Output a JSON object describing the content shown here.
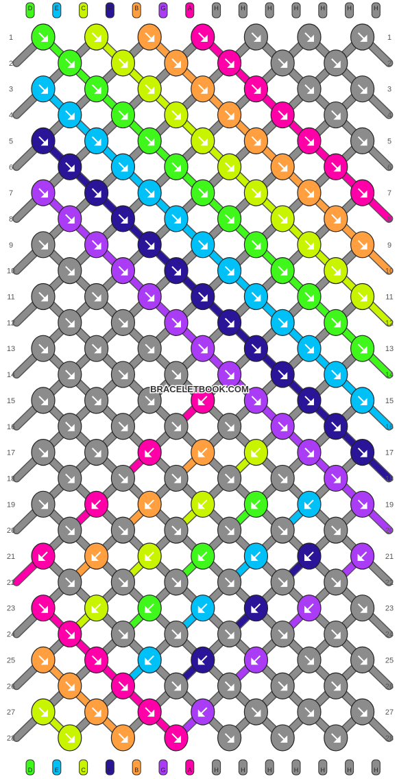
{
  "watermark": "BRACELETBOOK.COM",
  "strands": {
    "top": [
      "D",
      "E",
      "C",
      "F",
      "B",
      "G",
      "A",
      "H",
      "H",
      "H",
      "H",
      "H",
      "H",
      "H"
    ],
    "bottom": [
      "D",
      "E",
      "C",
      "F",
      "B",
      "G",
      "A",
      "H",
      "H",
      "H",
      "H",
      "H",
      "H",
      "H"
    ]
  },
  "colors": {
    "A": "#ff00a8",
    "B": "#ff9f40",
    "C": "#c8f400",
    "D": "#3ff71a",
    "E": "#00c0f8",
    "F": "#2a1599",
    "G": "#aa3cf5",
    "H": "#8c8c8c"
  },
  "row_count": 28,
  "rows": [
    {
      "number": 1,
      "knots": [
        {
          "color": "D",
          "dir": "f"
        },
        {
          "color": "C",
          "dir": "f"
        },
        {
          "color": "B",
          "dir": "f"
        },
        {
          "color": "A",
          "dir": "f"
        },
        {
          "color": "H",
          "dir": "f"
        },
        {
          "color": "H",
          "dir": "f"
        },
        {
          "color": "H",
          "dir": "f"
        }
      ]
    },
    {
      "number": 2,
      "knots": [
        {
          "color": "D",
          "dir": "f"
        },
        {
          "color": "C",
          "dir": "f"
        },
        {
          "color": "B",
          "dir": "f"
        },
        {
          "color": "A",
          "dir": "f"
        },
        {
          "color": "H",
          "dir": "f"
        },
        {
          "color": "H",
          "dir": "f"
        }
      ]
    },
    {
      "number": 3,
      "knots": [
        {
          "color": "E",
          "dir": "f"
        },
        {
          "color": "D",
          "dir": "f"
        },
        {
          "color": "C",
          "dir": "f"
        },
        {
          "color": "B",
          "dir": "f"
        },
        {
          "color": "A",
          "dir": "f"
        },
        {
          "color": "H",
          "dir": "f"
        },
        {
          "color": "H",
          "dir": "f"
        }
      ]
    },
    {
      "number": 4,
      "knots": [
        {
          "color": "E",
          "dir": "f"
        },
        {
          "color": "D",
          "dir": "f"
        },
        {
          "color": "C",
          "dir": "f"
        },
        {
          "color": "B",
          "dir": "f"
        },
        {
          "color": "A",
          "dir": "f"
        },
        {
          "color": "H",
          "dir": "f"
        }
      ]
    },
    {
      "number": 5,
      "knots": [
        {
          "color": "F",
          "dir": "f"
        },
        {
          "color": "E",
          "dir": "f"
        },
        {
          "color": "D",
          "dir": "f"
        },
        {
          "color": "C",
          "dir": "f"
        },
        {
          "color": "B",
          "dir": "f"
        },
        {
          "color": "A",
          "dir": "f"
        },
        {
          "color": "H",
          "dir": "f"
        }
      ]
    },
    {
      "number": 6,
      "knots": [
        {
          "color": "F",
          "dir": "f"
        },
        {
          "color": "E",
          "dir": "f"
        },
        {
          "color": "D",
          "dir": "f"
        },
        {
          "color": "C",
          "dir": "f"
        },
        {
          "color": "B",
          "dir": "f"
        },
        {
          "color": "A",
          "dir": "f"
        }
      ]
    },
    {
      "number": 7,
      "knots": [
        {
          "color": "G",
          "dir": "f"
        },
        {
          "color": "F",
          "dir": "f"
        },
        {
          "color": "E",
          "dir": "f"
        },
        {
          "color": "D",
          "dir": "f"
        },
        {
          "color": "C",
          "dir": "f"
        },
        {
          "color": "B",
          "dir": "f"
        },
        {
          "color": "A",
          "dir": "f"
        }
      ]
    },
    {
      "number": 8,
      "knots": [
        {
          "color": "G",
          "dir": "f"
        },
        {
          "color": "F",
          "dir": "f"
        },
        {
          "color": "E",
          "dir": "f"
        },
        {
          "color": "D",
          "dir": "f"
        },
        {
          "color": "C",
          "dir": "f"
        },
        {
          "color": "B",
          "dir": "f"
        }
      ]
    },
    {
      "number": 9,
      "knots": [
        {
          "color": "H",
          "dir": "f"
        },
        {
          "color": "G",
          "dir": "f"
        },
        {
          "color": "F",
          "dir": "f"
        },
        {
          "color": "E",
          "dir": "f"
        },
        {
          "color": "D",
          "dir": "f"
        },
        {
          "color": "C",
          "dir": "f"
        },
        {
          "color": "B",
          "dir": "f"
        }
      ]
    },
    {
      "number": 10,
      "knots": [
        {
          "color": "H",
          "dir": "f"
        },
        {
          "color": "G",
          "dir": "f"
        },
        {
          "color": "F",
          "dir": "f"
        },
        {
          "color": "E",
          "dir": "f"
        },
        {
          "color": "D",
          "dir": "f"
        },
        {
          "color": "C",
          "dir": "f"
        }
      ]
    },
    {
      "number": 11,
      "knots": [
        {
          "color": "H",
          "dir": "f"
        },
        {
          "color": "H",
          "dir": "f"
        },
        {
          "color": "G",
          "dir": "f"
        },
        {
          "color": "F",
          "dir": "f"
        },
        {
          "color": "E",
          "dir": "f"
        },
        {
          "color": "D",
          "dir": "f"
        },
        {
          "color": "C",
          "dir": "f"
        }
      ]
    },
    {
      "number": 12,
      "knots": [
        {
          "color": "H",
          "dir": "f"
        },
        {
          "color": "H",
          "dir": "f"
        },
        {
          "color": "G",
          "dir": "f"
        },
        {
          "color": "F",
          "dir": "f"
        },
        {
          "color": "E",
          "dir": "f"
        },
        {
          "color": "D",
          "dir": "f"
        }
      ]
    },
    {
      "number": 13,
      "knots": [
        {
          "color": "H",
          "dir": "f"
        },
        {
          "color": "H",
          "dir": "f"
        },
        {
          "color": "H",
          "dir": "f"
        },
        {
          "color": "G",
          "dir": "f"
        },
        {
          "color": "F",
          "dir": "f"
        },
        {
          "color": "E",
          "dir": "f"
        },
        {
          "color": "D",
          "dir": "f"
        }
      ]
    },
    {
      "number": 14,
      "knots": [
        {
          "color": "H",
          "dir": "f"
        },
        {
          "color": "H",
          "dir": "f"
        },
        {
          "color": "H",
          "dir": "f"
        },
        {
          "color": "G",
          "dir": "f"
        },
        {
          "color": "F",
          "dir": "f"
        },
        {
          "color": "E",
          "dir": "f"
        }
      ]
    },
    {
      "number": 15,
      "knots": [
        {
          "color": "H",
          "dir": "f"
        },
        {
          "color": "H",
          "dir": "f"
        },
        {
          "color": "H",
          "dir": "f"
        },
        {
          "color": "A",
          "dir": "b"
        },
        {
          "color": "G",
          "dir": "f"
        },
        {
          "color": "F",
          "dir": "f"
        },
        {
          "color": "E",
          "dir": "f"
        }
      ]
    },
    {
      "number": 16,
      "knots": [
        {
          "color": "H",
          "dir": "f"
        },
        {
          "color": "H",
          "dir": "f"
        },
        {
          "color": "H",
          "dir": "f"
        },
        {
          "color": "H",
          "dir": "f"
        },
        {
          "color": "G",
          "dir": "f"
        },
        {
          "color": "F",
          "dir": "f"
        }
      ]
    },
    {
      "number": 17,
      "knots": [
        {
          "color": "H",
          "dir": "f"
        },
        {
          "color": "H",
          "dir": "f"
        },
        {
          "color": "A",
          "dir": "b"
        },
        {
          "color": "B",
          "dir": "b"
        },
        {
          "color": "C",
          "dir": "b"
        },
        {
          "color": "G",
          "dir": "f"
        },
        {
          "color": "F",
          "dir": "f"
        }
      ]
    },
    {
      "number": 18,
      "knots": [
        {
          "color": "H",
          "dir": "f"
        },
        {
          "color": "H",
          "dir": "f"
        },
        {
          "color": "H",
          "dir": "f"
        },
        {
          "color": "H",
          "dir": "f"
        },
        {
          "color": "H",
          "dir": "f"
        },
        {
          "color": "G",
          "dir": "f"
        }
      ]
    },
    {
      "number": 19,
      "knots": [
        {
          "color": "H",
          "dir": "f"
        },
        {
          "color": "A",
          "dir": "b"
        },
        {
          "color": "B",
          "dir": "b"
        },
        {
          "color": "C",
          "dir": "b"
        },
        {
          "color": "D",
          "dir": "b"
        },
        {
          "color": "E",
          "dir": "b"
        },
        {
          "color": "G",
          "dir": "f"
        }
      ]
    },
    {
      "number": 20,
      "knots": [
        {
          "color": "H",
          "dir": "f"
        },
        {
          "color": "H",
          "dir": "f"
        },
        {
          "color": "H",
          "dir": "f"
        },
        {
          "color": "H",
          "dir": "f"
        },
        {
          "color": "H",
          "dir": "f"
        },
        {
          "color": "H",
          "dir": "f"
        }
      ]
    },
    {
      "number": 21,
      "knots": [
        {
          "color": "A",
          "dir": "b"
        },
        {
          "color": "B",
          "dir": "b"
        },
        {
          "color": "C",
          "dir": "b"
        },
        {
          "color": "D",
          "dir": "b"
        },
        {
          "color": "E",
          "dir": "b"
        },
        {
          "color": "F",
          "dir": "b"
        },
        {
          "color": "G",
          "dir": "b"
        }
      ]
    },
    {
      "number": 22,
      "knots": [
        {
          "color": "H",
          "dir": "f"
        },
        {
          "color": "H",
          "dir": "f"
        },
        {
          "color": "H",
          "dir": "f"
        },
        {
          "color": "H",
          "dir": "f"
        },
        {
          "color": "H",
          "dir": "f"
        },
        {
          "color": "H",
          "dir": "f"
        }
      ]
    },
    {
      "number": 23,
      "knots": [
        {
          "color": "A",
          "dir": "f"
        },
        {
          "color": "C",
          "dir": "b"
        },
        {
          "color": "D",
          "dir": "b"
        },
        {
          "color": "E",
          "dir": "b"
        },
        {
          "color": "F",
          "dir": "b"
        },
        {
          "color": "G",
          "dir": "b"
        },
        {
          "color": "H",
          "dir": "f"
        }
      ]
    },
    {
      "number": 24,
      "knots": [
        {
          "color": "A",
          "dir": "f"
        },
        {
          "color": "H",
          "dir": "f"
        },
        {
          "color": "H",
          "dir": "f"
        },
        {
          "color": "H",
          "dir": "f"
        },
        {
          "color": "H",
          "dir": "f"
        },
        {
          "color": "H",
          "dir": "f"
        }
      ]
    },
    {
      "number": 25,
      "knots": [
        {
          "color": "B",
          "dir": "f"
        },
        {
          "color": "A",
          "dir": "f"
        },
        {
          "color": "E",
          "dir": "b"
        },
        {
          "color": "F",
          "dir": "b"
        },
        {
          "color": "G",
          "dir": "b"
        },
        {
          "color": "H",
          "dir": "f"
        },
        {
          "color": "H",
          "dir": "f"
        }
      ]
    },
    {
      "number": 26,
      "knots": [
        {
          "color": "B",
          "dir": "f"
        },
        {
          "color": "A",
          "dir": "f"
        },
        {
          "color": "H",
          "dir": "f"
        },
        {
          "color": "H",
          "dir": "f"
        },
        {
          "color": "H",
          "dir": "f"
        },
        {
          "color": "H",
          "dir": "f"
        }
      ]
    },
    {
      "number": 27,
      "knots": [
        {
          "color": "C",
          "dir": "f"
        },
        {
          "color": "B",
          "dir": "f"
        },
        {
          "color": "A",
          "dir": "f"
        },
        {
          "color": "G",
          "dir": "b"
        },
        {
          "color": "H",
          "dir": "f"
        },
        {
          "color": "H",
          "dir": "f"
        },
        {
          "color": "H",
          "dir": "f"
        }
      ]
    },
    {
      "number": 28,
      "knots": [
        {
          "color": "C",
          "dir": "f"
        },
        {
          "color": "B",
          "dir": "f"
        },
        {
          "color": "A",
          "dir": "f"
        },
        {
          "color": "H",
          "dir": "f"
        },
        {
          "color": "H",
          "dir": "f"
        },
        {
          "color": "H",
          "dir": "f"
        }
      ]
    }
  ]
}
